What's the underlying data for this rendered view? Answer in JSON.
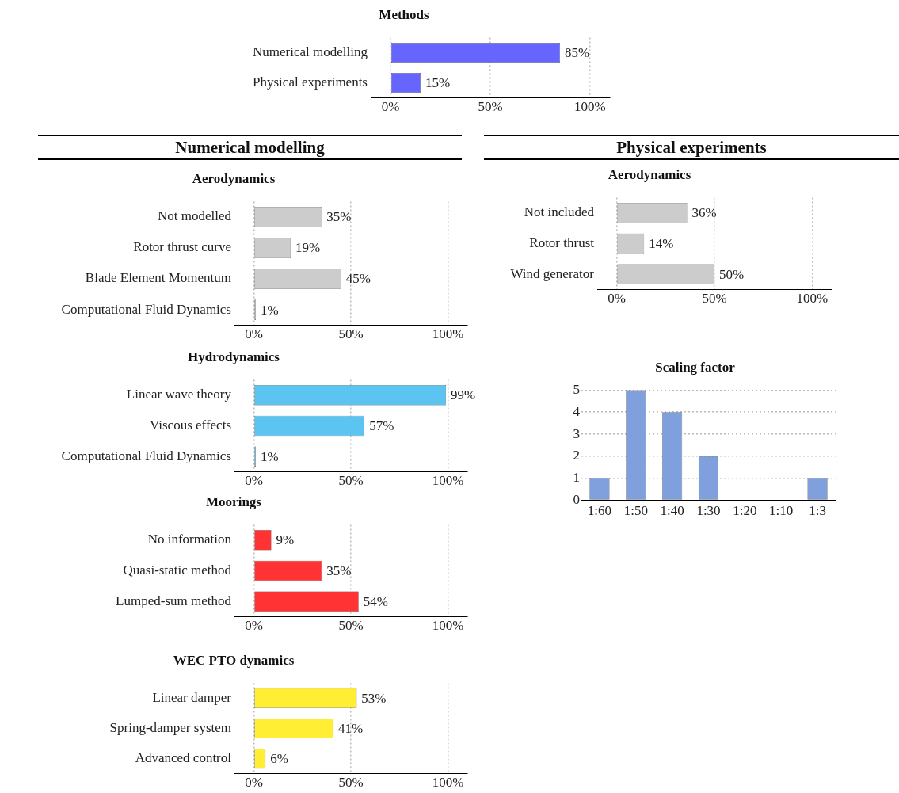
{
  "chart_data": [
    {
      "type": "bar",
      "orientation": "horizontal",
      "title": "Methods",
      "categories": [
        "Numerical modelling",
        "Physical experiments"
      ],
      "values": [
        85,
        15
      ],
      "value_labels": [
        "85%",
        "15%"
      ],
      "color": "#6666ff",
      "xlim": [
        -10,
        110
      ],
      "xticks": [
        {
          "value": 0,
          "label": "0%"
        },
        {
          "value": 50,
          "label": "50%"
        },
        {
          "value": 100,
          "label": "100%"
        }
      ],
      "grid": "x"
    },
    {
      "type": "other",
      "title": "Numerical modelling"
    },
    {
      "type": "bar",
      "orientation": "horizontal",
      "title": "Aerodynamics",
      "categories": [
        "Not modelled",
        "Rotor thrust curve",
        "Blade Element Momentum",
        "Computational Fluid Dynamics"
      ],
      "values": [
        35,
        19,
        45,
        1
      ],
      "value_labels": [
        "35%",
        "19%",
        "45%",
        "1%"
      ],
      "color": "#cccccc",
      "xlim": [
        -10,
        110
      ],
      "xticks": [
        {
          "value": 0,
          "label": "0%"
        },
        {
          "value": 50,
          "label": "50%"
        },
        {
          "value": 100,
          "label": "100%"
        }
      ],
      "grid": "x"
    },
    {
      "type": "bar",
      "orientation": "horizontal",
      "title": "Hydrodynamics",
      "categories": [
        "Linear wave theory",
        "Viscous effects",
        "Computational Fluid Dynamics"
      ],
      "values": [
        99,
        57,
        1
      ],
      "value_labels": [
        "99%",
        "57%",
        "1%"
      ],
      "color": "#5bc4f0",
      "xlim": [
        -10,
        110
      ],
      "xticks": [
        {
          "value": 0,
          "label": "0%"
        },
        {
          "value": 50,
          "label": "50%"
        },
        {
          "value": 100,
          "label": "100%"
        }
      ],
      "grid": "x"
    },
    {
      "type": "bar",
      "orientation": "horizontal",
      "title": "Moorings",
      "categories": [
        "No information",
        "Quasi-static method",
        "Lumped-sum method"
      ],
      "values": [
        9,
        35,
        54
      ],
      "value_labels": [
        "9%",
        "35%",
        "54%"
      ],
      "color": "#ff3333",
      "xlim": [
        -10,
        110
      ],
      "xticks": [
        {
          "value": 0,
          "label": "0%"
        },
        {
          "value": 50,
          "label": "50%"
        },
        {
          "value": 100,
          "label": "100%"
        }
      ],
      "grid": "x"
    },
    {
      "type": "bar",
      "orientation": "horizontal",
      "title": "WEC PTO dynamics",
      "categories": [
        "Linear damper",
        "Spring-damper system",
        "Advanced control"
      ],
      "values": [
        53,
        41,
        6
      ],
      "value_labels": [
        "53%",
        "41%",
        "6%"
      ],
      "color": "#ffee33",
      "xlim": [
        -10,
        110
      ],
      "xticks": [
        {
          "value": 0,
          "label": "0%"
        },
        {
          "value": 50,
          "label": "50%"
        },
        {
          "value": 100,
          "label": "100%"
        }
      ],
      "grid": "x"
    },
    {
      "type": "other",
      "title": "Physical experiments"
    },
    {
      "type": "bar",
      "orientation": "horizontal",
      "title": "Aerodynamics",
      "categories": [
        "Not included",
        "Rotor thrust",
        "Wind generator"
      ],
      "values": [
        36,
        14,
        50
      ],
      "value_labels": [
        "36%",
        "14%",
        "50%"
      ],
      "color": "#cccccc",
      "xlim": [
        -10,
        110
      ],
      "xticks": [
        {
          "value": 0,
          "label": "0%"
        },
        {
          "value": 50,
          "label": "50%"
        },
        {
          "value": 100,
          "label": "100%"
        }
      ],
      "grid": "x"
    },
    {
      "type": "bar",
      "title": "Scaling factor",
      "categories": [
        "1:60",
        "1:50",
        "1:40",
        "1:30",
        "1:20",
        "1:10",
        "1:3"
      ],
      "values": [
        1,
        5,
        4,
        2,
        0,
        0,
        1
      ],
      "color": "#7fa0dc",
      "ylim": [
        0,
        5
      ],
      "yticks": [
        0,
        1,
        2,
        3,
        4,
        5
      ],
      "grid": "y"
    }
  ]
}
